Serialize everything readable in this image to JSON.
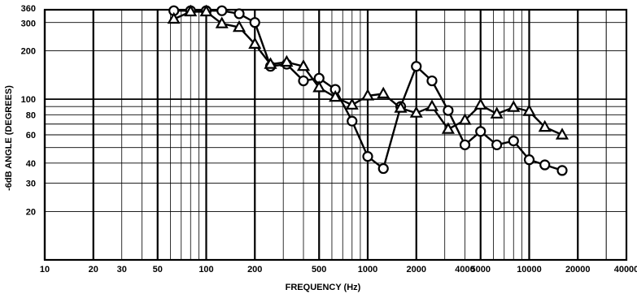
{
  "chart_data": {
    "type": "line",
    "xlabel": "FREQUENCY (Hz)",
    "ylabel": "-6dB ANGLE (DEGREES)",
    "x_scale": "log",
    "y_scale": "log",
    "xlim": [
      10,
      40000
    ],
    "ylim": [
      10,
      360
    ],
    "grid": true,
    "x_tick_labels": [
      "10",
      "20",
      "30",
      "50",
      "100",
      "200",
      "500",
      "1000",
      "2000",
      "4000",
      "5000",
      "10000",
      "20000",
      "40000"
    ],
    "x_tick_values": [
      10,
      20,
      30,
      50,
      100,
      200,
      500,
      1000,
      2000,
      4000,
      5000,
      10000,
      20000,
      40000
    ],
    "y_tick_labels": [
      "360",
      "300",
      "200",
      "100",
      "80",
      "60",
      "40",
      "30",
      "20"
    ],
    "y_tick_values": [
      360,
      300,
      200,
      100,
      80,
      60,
      40,
      30,
      20
    ],
    "series": [
      {
        "marker": "circle",
        "x": [
          63,
          80,
          100,
          125,
          160,
          200,
          250,
          315,
          400,
          500,
          630,
          800,
          1000,
          1250,
          1600,
          2000,
          2500,
          3150,
          4000,
          5000,
          6300,
          8000,
          10000,
          12500,
          16000
        ],
        "values": [
          355,
          355,
          355,
          355,
          340,
          300,
          160,
          165,
          130,
          135,
          115,
          73,
          44,
          37,
          90,
          160,
          130,
          85,
          52,
          63,
          52,
          55,
          42,
          39,
          36
        ]
      },
      {
        "marker": "triangle",
        "x": [
          63,
          80,
          100,
          125,
          160,
          200,
          250,
          315,
          400,
          500,
          630,
          800,
          1000,
          1250,
          1600,
          2000,
          2500,
          3150,
          4000,
          5000,
          6300,
          8000,
          10000,
          12500,
          16000
        ],
        "values": [
          315,
          350,
          350,
          295,
          280,
          220,
          165,
          170,
          160,
          118,
          103,
          92,
          105,
          108,
          88,
          82,
          90,
          65,
          74,
          92,
          81,
          89,
          84,
          67,
          60
        ]
      }
    ]
  }
}
